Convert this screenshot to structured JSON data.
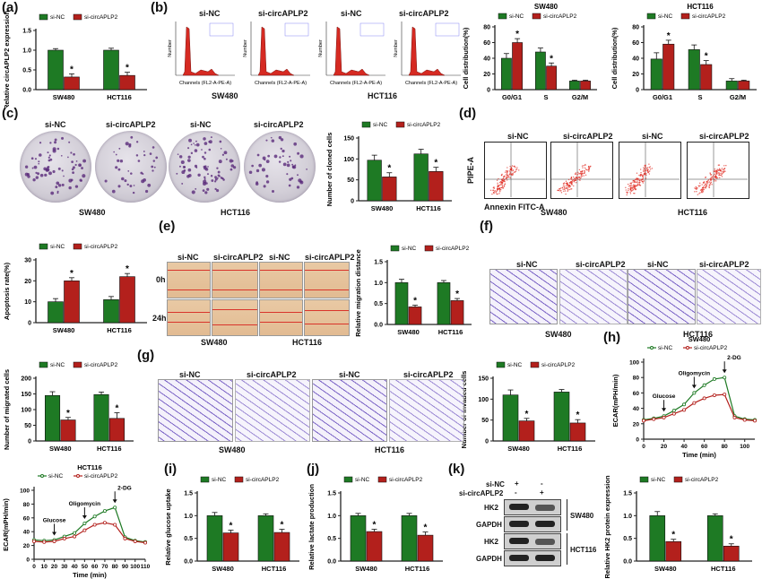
{
  "panel_letters": [
    "(a)",
    "(b)",
    "(c)",
    "(d)",
    "(e)",
    "(f)",
    "(g)",
    "(h)",
    "(i)",
    "(j)",
    "(k)"
  ],
  "colors": {
    "si_nc": "#1e7a24",
    "si_circ": "#b3201c",
    "axis": "#222222"
  },
  "common": {
    "legend_nc": "si-NC",
    "legend_circ": "si-circAPLP2",
    "sw480": "SW480",
    "hct116": "HCT116",
    "star": "*"
  },
  "panel_b": {
    "sw480": "SW480",
    "hct116": "HCT116",
    "hist_titles": [
      "si-NC",
      "si-circAPLP2",
      "si-NC",
      "si-circAPLP2"
    ],
    "hist_xlabel": "Channels (FL2-A-PE-A)",
    "hist_ylabel": "Number"
  },
  "panel_c": {
    "titles": [
      "si-NC",
      "si-circAPLP2",
      "si-NC",
      "si-circAPLP2"
    ],
    "sw480": "SW480",
    "hct116": "HCT116"
  },
  "panel_d": {
    "titles": [
      "si-NC",
      "si-circAPLP2",
      "si-NC",
      "si-circAPLP2"
    ],
    "ylabel": "PIPE-A",
    "xlabel": "Annexin FITC-A",
    "sw480": "SW480",
    "hct116": "HCT116"
  },
  "panel_e": {
    "titles": [
      "si-NC",
      "si-circAPLP2",
      "si-NC",
      "si-circAPLP2"
    ],
    "row_0h": "0h",
    "row_24h": "24h",
    "sw480": "SW480",
    "hct116": "HCT116"
  },
  "panel_f": {
    "titles": [
      "si-NC",
      "si-circAPLP2",
      "si-NC",
      "si-circAPLP2"
    ],
    "sw480": "SW480",
    "hct116": "HCT116"
  },
  "panel_g": {
    "titles": [
      "si-NC",
      "si-circAPLP2",
      "si-NC",
      "si-circAPLP2"
    ],
    "sw480": "SW480",
    "hct116": "HCT116"
  },
  "panel_k": {
    "row_sinc": "si-NC",
    "row_circ": "si-circAPLP2",
    "plus": "+",
    "minus": "-",
    "hk2": "HK2",
    "gapdh": "GAPDH",
    "sw480": "SW480",
    "hct116": "HCT116"
  },
  "chart_data": [
    {
      "id": "a",
      "type": "bar",
      "categories": [
        "SW480",
        "HCT116"
      ],
      "ylabel": "Relative circAPLP2 expression",
      "ylim": [
        0,
        1.5
      ],
      "yticks": [
        0.0,
        0.5,
        1.0,
        1.5
      ],
      "series": [
        {
          "name": "si-NC",
          "values": [
            1.0,
            1.0
          ],
          "errors": [
            0.04,
            0.05
          ]
        },
        {
          "name": "si-circAPLP2",
          "values": [
            0.32,
            0.36
          ],
          "errors": [
            0.08,
            0.08
          ]
        }
      ],
      "annotations": [
        "*",
        "*"
      ],
      "legend": "top-left"
    },
    {
      "id": "b_sw480",
      "type": "bar",
      "title": "SW480",
      "categories": [
        "G0/G1",
        "S",
        "G2/M"
      ],
      "ylabel": "Cell distribution(%)",
      "ylim": [
        0,
        80
      ],
      "yticks": [
        0,
        20,
        40,
        60,
        80
      ],
      "series": [
        {
          "name": "si-NC",
          "values": [
            40,
            48,
            11
          ],
          "errors": [
            6,
            5,
            1
          ]
        },
        {
          "name": "si-circAPLP2",
          "values": [
            60,
            30,
            11
          ],
          "errors": [
            5,
            4,
            1
          ]
        }
      ],
      "annotations": [
        "*",
        "*",
        ""
      ],
      "legend": "top"
    },
    {
      "id": "b_hct116",
      "type": "bar",
      "title": "HCT116",
      "categories": [
        "G0/G1",
        "S",
        "G2/M"
      ],
      "ylabel": "Cell distribution(%)",
      "ylim": [
        0,
        80
      ],
      "yticks": [
        0,
        20,
        40,
        60,
        80
      ],
      "series": [
        {
          "name": "si-NC",
          "values": [
            39,
            51,
            11
          ],
          "errors": [
            8,
            6,
            3
          ]
        },
        {
          "name": "si-circAPLP2",
          "values": [
            58,
            32,
            11
          ],
          "errors": [
            5,
            5,
            1
          ]
        }
      ],
      "annotations": [
        "*",
        "*",
        ""
      ],
      "legend": "top"
    },
    {
      "id": "c",
      "type": "bar",
      "categories": [
        "SW480",
        "HCT116"
      ],
      "ylabel": "Number of cloned cells",
      "ylim": [
        0,
        150
      ],
      "yticks": [
        0,
        50,
        100,
        150
      ],
      "series": [
        {
          "name": "si-NC",
          "values": [
            97,
            112
          ],
          "errors": [
            12,
            11
          ]
        },
        {
          "name": "si-circAPLP2",
          "values": [
            57,
            70
          ],
          "errors": [
            10,
            10
          ]
        }
      ],
      "annotations": [
        "*",
        "*"
      ],
      "legend": "top"
    },
    {
      "id": "d_bar",
      "type": "bar",
      "categories": [
        "SW480",
        "HCT116"
      ],
      "ylabel": "Apoptosis rate(%)",
      "ylim": [
        0,
        30
      ],
      "yticks": [
        0,
        10,
        20,
        30
      ],
      "series": [
        {
          "name": "si-NC",
          "values": [
            10,
            11
          ],
          "errors": [
            1.5,
            1.5
          ]
        },
        {
          "name": "si-circAPLP2",
          "values": [
            20,
            22
          ],
          "errors": [
            1.5,
            1.5
          ]
        }
      ],
      "annotations": [
        "*",
        "*"
      ],
      "legend": "top"
    },
    {
      "id": "e",
      "type": "bar",
      "categories": [
        "SW480",
        "HCT116"
      ],
      "ylabel": "Relative migration distance",
      "ylim": [
        0,
        1.5
      ],
      "yticks": [
        0.0,
        0.5,
        1.0,
        1.5
      ],
      "series": [
        {
          "name": "si-NC",
          "values": [
            1.0,
            1.0
          ],
          "errors": [
            0.08,
            0.05
          ]
        },
        {
          "name": "si-circAPLP2",
          "values": [
            0.42,
            0.57
          ],
          "errors": [
            0.04,
            0.05
          ]
        }
      ],
      "annotations": [
        "*",
        "*"
      ],
      "legend": "top"
    },
    {
      "id": "f_bar",
      "type": "bar",
      "categories": [
        "SW480",
        "HCT116"
      ],
      "ylabel": "Number of migrated cells",
      "ylim": [
        0,
        200
      ],
      "yticks": [
        0,
        50,
        100,
        150,
        200
      ],
      "series": [
        {
          "name": "si-NC",
          "values": [
            145,
            148
          ],
          "errors": [
            12,
            8
          ]
        },
        {
          "name": "si-circAPLP2",
          "values": [
            67,
            72
          ],
          "errors": [
            8,
            18
          ]
        }
      ],
      "annotations": [
        "*",
        "*"
      ],
      "legend": "top"
    },
    {
      "id": "g_bar",
      "type": "bar",
      "categories": [
        "SW480",
        "HCT116"
      ],
      "ylabel": "Number of invaded cells",
      "ylim": [
        0,
        150
      ],
      "yticks": [
        0,
        50,
        100,
        150
      ],
      "series": [
        {
          "name": "si-NC",
          "values": [
            110,
            117
          ],
          "errors": [
            12,
            6
          ]
        },
        {
          "name": "si-circAPLP2",
          "values": [
            48,
            43
          ],
          "errors": [
            6,
            8
          ]
        }
      ],
      "annotations": [
        "*",
        "*"
      ],
      "legend": "top"
    },
    {
      "id": "h_sw480",
      "type": "line",
      "title": "SW480",
      "xlabel": "Time (min)",
      "ylabel": "ECAR(mPH/min)",
      "xlim": [
        0,
        110
      ],
      "ylim": [
        0,
        100
      ],
      "xticks": [
        0,
        20,
        40,
        60,
        80,
        100
      ],
      "yticks": [
        0,
        20,
        40,
        60,
        80,
        100
      ],
      "x": [
        0,
        10,
        20,
        30,
        40,
        50,
        60,
        70,
        80,
        90,
        100,
        110
      ],
      "series": [
        {
          "name": "si-NC",
          "values": [
            25,
            27,
            30,
            37,
            45,
            60,
            70,
            78,
            80,
            30,
            26,
            25
          ]
        },
        {
          "name": "si-circAPLP2",
          "values": [
            24,
            26,
            28,
            33,
            38,
            47,
            53,
            57,
            58,
            28,
            25,
            24
          ]
        }
      ],
      "arrows": [
        {
          "label": "Glucose",
          "x": 20
        },
        {
          "label": "Oligomycin",
          "x": 50
        },
        {
          "label": "2-DG",
          "x": 80
        }
      ]
    },
    {
      "id": "h_hct116",
      "type": "line",
      "title": "HCT116",
      "xlabel": "Time (min)",
      "ylabel": "ECAR(mPH/min)",
      "xlim": [
        0,
        110
      ],
      "ylim": [
        0,
        100
      ],
      "xticks": [
        0,
        10,
        20,
        30,
        40,
        50,
        60,
        70,
        80,
        90,
        100,
        110
      ],
      "yticks": [
        0,
        20,
        40,
        60,
        80,
        100
      ],
      "x": [
        0,
        10,
        20,
        30,
        40,
        50,
        60,
        70,
        80,
        90,
        100,
        110
      ],
      "series": [
        {
          "name": "si-NC",
          "values": [
            28,
            27,
            28,
            33,
            38,
            52,
            62,
            70,
            75,
            32,
            27,
            25
          ]
        },
        {
          "name": "si-circAPLP2",
          "values": [
            26,
            25,
            26,
            30,
            33,
            42,
            50,
            53,
            50,
            30,
            26,
            24
          ]
        }
      ],
      "arrows": [
        {
          "label": "Glucose",
          "x": 20
        },
        {
          "label": "Oligomycin",
          "x": 50
        },
        {
          "label": "2-DG",
          "x": 80
        }
      ]
    },
    {
      "id": "i",
      "type": "bar",
      "categories": [
        "SW480",
        "HCT116"
      ],
      "ylabel": "Relative glucose uptake",
      "ylim": [
        0,
        1.5
      ],
      "yticks": [
        0.0,
        0.5,
        1.0,
        1.5
      ],
      "series": [
        {
          "name": "si-NC",
          "values": [
            1.0,
            1.0
          ],
          "errors": [
            0.07,
            0.04
          ]
        },
        {
          "name": "si-circAPLP2",
          "values": [
            0.62,
            0.63
          ],
          "errors": [
            0.06,
            0.07
          ]
        }
      ],
      "annotations": [
        "*",
        "*"
      ],
      "legend": "top"
    },
    {
      "id": "j",
      "type": "bar",
      "categories": [
        "SW480",
        "HCT116"
      ],
      "ylabel": "Relative lactate production",
      "ylim": [
        0,
        1.5
      ],
      "yticks": [
        0.0,
        0.5,
        1.0,
        1.5
      ],
      "series": [
        {
          "name": "si-NC",
          "values": [
            1.0,
            1.0
          ],
          "errors": [
            0.05,
            0.05
          ]
        },
        {
          "name": "si-circAPLP2",
          "values": [
            0.65,
            0.57
          ],
          "errors": [
            0.05,
            0.07
          ]
        }
      ],
      "annotations": [
        "*",
        "*"
      ],
      "legend": "top"
    },
    {
      "id": "k_bar",
      "type": "bar",
      "categories": [
        "SW480",
        "HCT116"
      ],
      "ylabel": "Relative HK2 protein expression",
      "ylim": [
        0,
        1.5
      ],
      "yticks": [
        0.0,
        0.5,
        1.0,
        1.5
      ],
      "series": [
        {
          "name": "si-NC",
          "values": [
            1.0,
            1.0
          ],
          "errors": [
            0.09,
            0.04
          ]
        },
        {
          "name": "si-circAPLP2",
          "values": [
            0.43,
            0.33
          ],
          "errors": [
            0.05,
            0.05
          ]
        }
      ],
      "annotations": [
        "*",
        "*"
      ],
      "legend": "top"
    }
  ]
}
